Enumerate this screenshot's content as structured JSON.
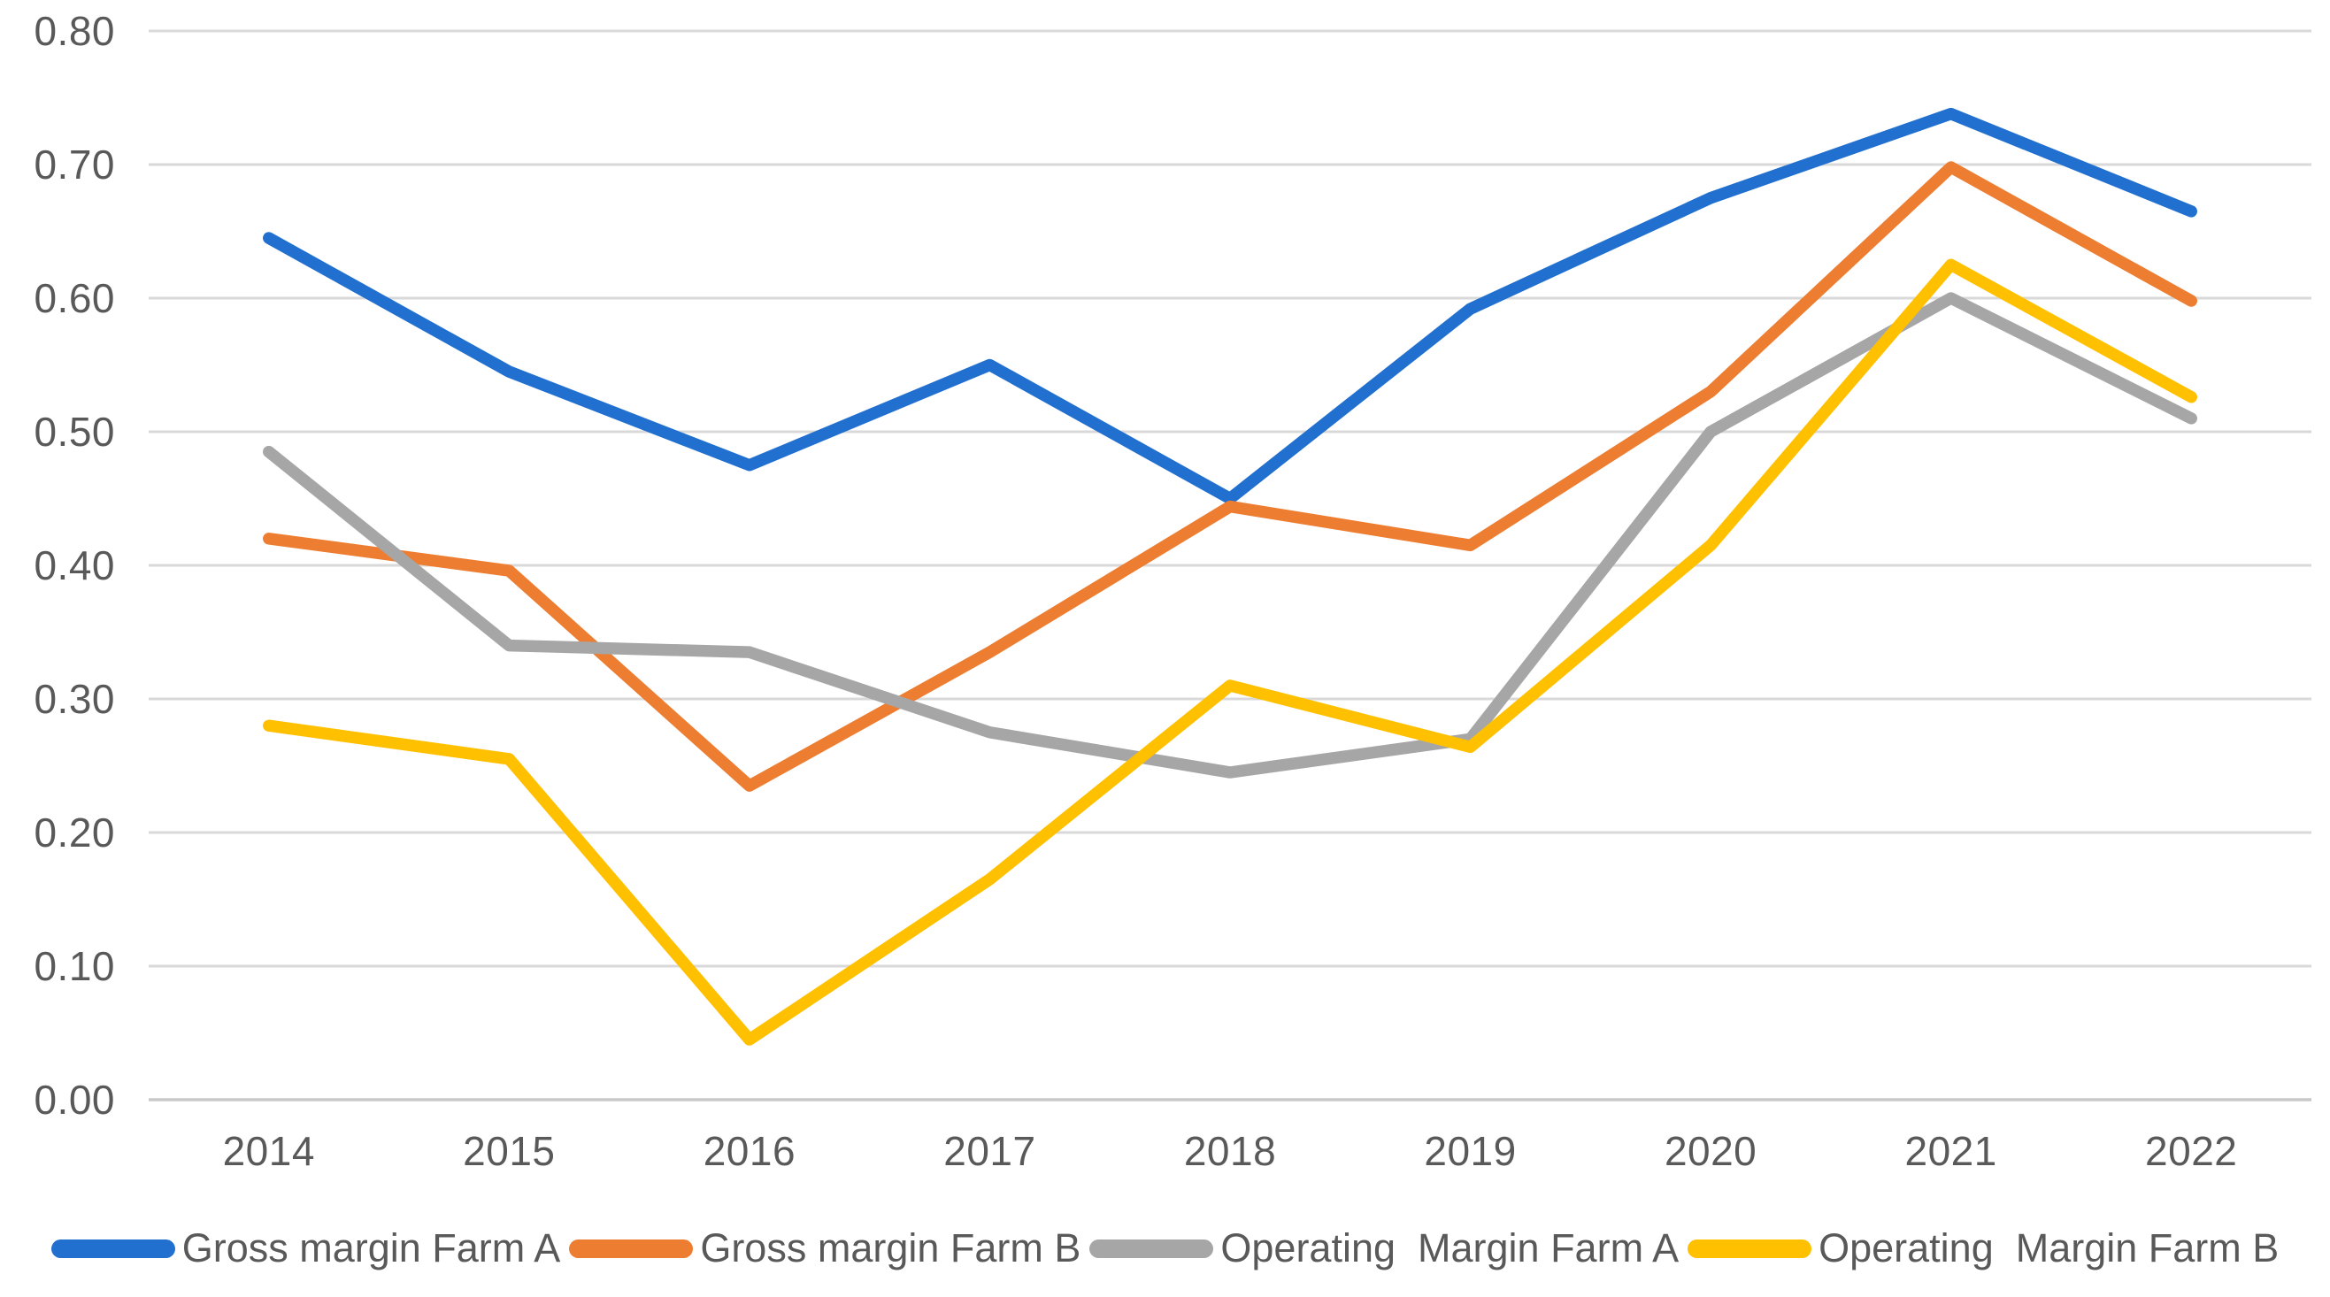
{
  "chart_data": {
    "type": "line",
    "title": "",
    "categories": [
      "2014",
      "2015",
      "2016",
      "2017",
      "2018",
      "2019",
      "2020",
      "2021",
      "2022"
    ],
    "series": [
      {
        "name": "Gross margin Farm A",
        "color": "#2170D0",
        "values": [
          0.645,
          0.545,
          0.475,
          0.55,
          0.45,
          0.592,
          0.675,
          0.738,
          0.665
        ]
      },
      {
        "name": "Gross margin Farm B",
        "color": "#ED7D31",
        "values": [
          0.42,
          0.396,
          0.235,
          0.335,
          0.444,
          0.415,
          0.53,
          0.698,
          0.598
        ]
      },
      {
        "name": "Operating  Margin Farm A",
        "color": "#A6A6A6",
        "values": [
          0.485,
          0.34,
          0.335,
          0.275,
          0.245,
          0.27,
          0.5,
          0.6,
          0.51
        ]
      },
      {
        "name": "Operating  Margin Farm B",
        "color": "#FFC000",
        "values": [
          0.28,
          0.255,
          0.045,
          0.165,
          0.31,
          0.264,
          0.415,
          0.625,
          0.526
        ]
      }
    ],
    "xlabel": "",
    "ylabel": "",
    "y_ticks": [
      "0.80",
      "0.70",
      "0.60",
      "0.50",
      "0.40",
      "0.30",
      "0.20",
      "0.10",
      "0.00"
    ],
    "ylim": [
      0.0,
      0.8
    ],
    "y_step": 0.1,
    "grid": true,
    "legend_position": "bottom",
    "axis_text_color": "#595959",
    "gridline_color": "#D9D9D9",
    "baseline_color": "#C9C9C9"
  }
}
